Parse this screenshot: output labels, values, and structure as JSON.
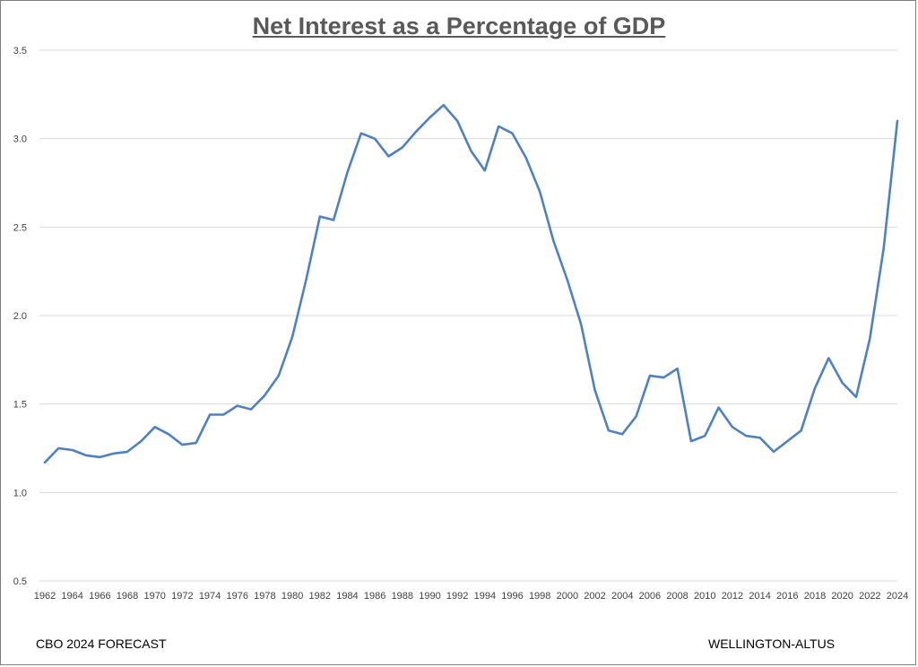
{
  "title": "Net Interest as a Percentage of GDP",
  "footer": {
    "left": "CBO 2024 FORECAST",
    "right": "WELLINGTON-ALTUS"
  },
  "colors": {
    "line": "#4f81bd",
    "grid": "#d9d9d9",
    "axis_text": "#404040",
    "title": "#595959"
  },
  "chart_data": {
    "type": "line",
    "title": "Net Interest as a Percentage of GDP",
    "xlabel": "",
    "ylabel": "",
    "ylim": [
      0.5,
      3.5
    ],
    "yticks": [
      "0.5",
      "1.0",
      "1.5",
      "2.0",
      "2.5",
      "3.0",
      "3.5"
    ],
    "xticks": [
      "1962",
      "1964",
      "1966",
      "1968",
      "1970",
      "1972",
      "1974",
      "1976",
      "1978",
      "1980",
      "1982",
      "1984",
      "1986",
      "1988",
      "1990",
      "1992",
      "1994",
      "1996",
      "1998",
      "2000",
      "2002",
      "2004",
      "2006",
      "2008",
      "2010",
      "2012",
      "2014",
      "2016",
      "2018",
      "2020",
      "2022",
      "2024"
    ],
    "grid": "horizontal",
    "legend": "none",
    "series": [
      {
        "x": [
          1962,
          1963,
          1964,
          1965,
          1966,
          1967,
          1968,
          1969,
          1970,
          1971,
          1972,
          1973,
          1974,
          1975,
          1976,
          1977,
          1978,
          1979,
          1980,
          1981,
          1982,
          1983,
          1984,
          1985,
          1986,
          1987,
          1988,
          1989,
          1990,
          1991,
          1992,
          1993,
          1994,
          1995,
          1996,
          1997,
          1998,
          1999,
          2000,
          2001,
          2002,
          2003,
          2004,
          2005,
          2006,
          2007,
          2008,
          2009,
          2010,
          2011,
          2012,
          2013,
          2014,
          2015,
          2016,
          2017,
          2018,
          2019,
          2020,
          2021,
          2022,
          2023,
          2024
        ],
        "values": [
          1.17,
          1.25,
          1.24,
          1.21,
          1.2,
          1.22,
          1.23,
          1.29,
          1.37,
          1.33,
          1.27,
          1.28,
          1.44,
          1.44,
          1.49,
          1.47,
          1.55,
          1.66,
          1.88,
          2.2,
          2.56,
          2.54,
          2.81,
          3.03,
          3.0,
          2.9,
          2.95,
          3.04,
          3.12,
          3.19,
          3.1,
          2.93,
          2.82,
          3.07,
          3.03,
          2.89,
          2.7,
          2.42,
          2.2,
          1.95,
          1.58,
          1.35,
          1.33,
          1.43,
          1.66,
          1.65,
          1.7,
          1.29,
          1.32,
          1.48,
          1.37,
          1.32,
          1.31,
          1.23,
          1.29,
          1.35,
          1.59,
          1.76,
          1.62,
          1.54,
          1.87,
          2.38,
          3.1
        ]
      }
    ]
  }
}
